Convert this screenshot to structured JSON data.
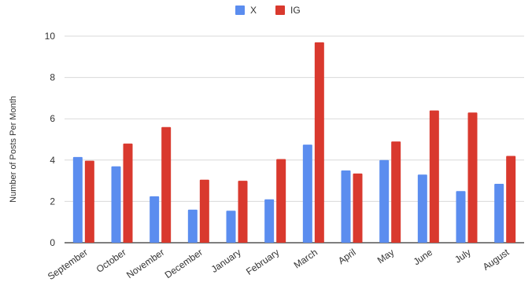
{
  "chart_data": {
    "type": "bar",
    "title": "",
    "xlabel": "",
    "ylabel": "Number of Posts Per Month",
    "ylim": [
      0,
      10
    ],
    "yticks": [
      0,
      2,
      4,
      6,
      8,
      10
    ],
    "grid": true,
    "legend_position": "top-center",
    "categories": [
      "September",
      "October",
      "November",
      "December",
      "January",
      "February",
      "March",
      "April",
      "May",
      "June",
      "July",
      "August"
    ],
    "series": [
      {
        "name": "X",
        "color": "#5b8def",
        "values": [
          4.15,
          3.7,
          2.25,
          1.6,
          1.55,
          2.1,
          4.75,
          3.5,
          4.0,
          3.3,
          2.5,
          2.85
        ]
      },
      {
        "name": "IG",
        "color": "#d9392e",
        "values": [
          3.97,
          4.8,
          5.6,
          3.05,
          3.0,
          4.05,
          9.7,
          3.35,
          4.9,
          6.4,
          6.3,
          4.2
        ]
      }
    ]
  }
}
